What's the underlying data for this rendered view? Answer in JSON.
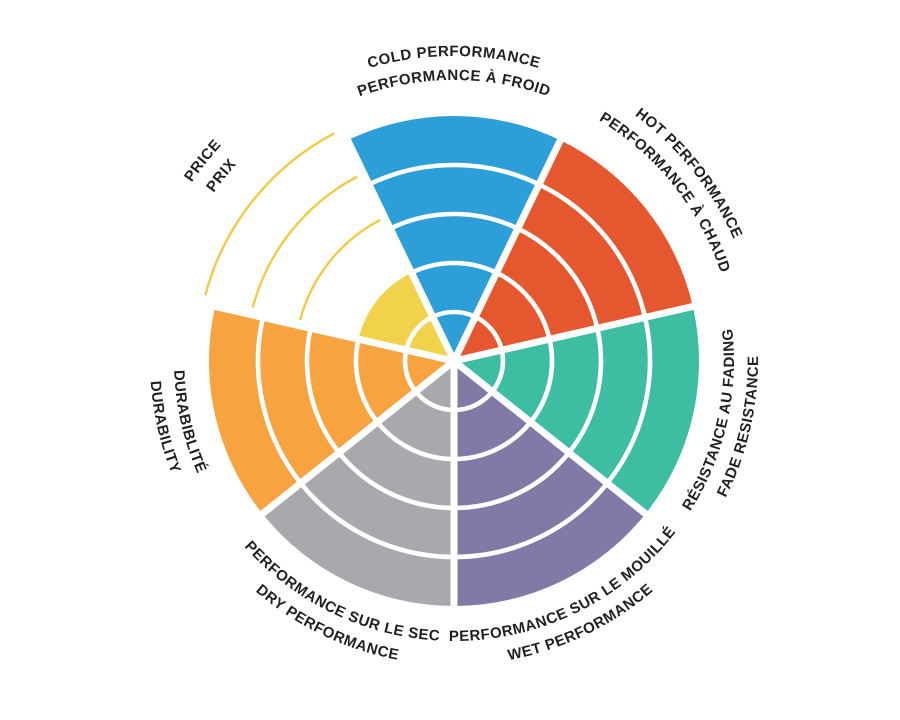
{
  "canvas": {
    "background": "#ffffff"
  },
  "chart_data": {
    "type": "pie",
    "subtype": "polar-rating-wheel",
    "title": "",
    "scale_max": 5,
    "rings": 5,
    "scale": [
      0,
      5
    ],
    "grid": "concentric-ring-dividers",
    "legend": "none",
    "empty_ring_style": "thin-outline-arc",
    "ring_line_color": "#ffffff",
    "text_color": "#231f20",
    "categories": [
      {
        "id": "cold",
        "label_en": "COLD PERFORMANCE",
        "label_fr": "PERFORMANCE À FROID",
        "value": 5,
        "color": "#2C9ED8",
        "label_orientation": "clockwise"
      },
      {
        "id": "hot",
        "label_en": "HOT PERFORMANCE",
        "label_fr": "PERFORMANCE À CHAUD",
        "value": 5,
        "color": "#E5582F",
        "label_orientation": "clockwise"
      },
      {
        "id": "fade",
        "label_en": "FADE RESISTANCE",
        "label_fr": "RÉSISTANCE AU FADING",
        "value": 5,
        "color": "#3DBEA3",
        "label_orientation": "counterclockwise"
      },
      {
        "id": "wet",
        "label_en": "WET PERFORMANCE",
        "label_fr": "PERFORMANCE SUR LE MOUILLÉ",
        "value": 5,
        "color": "#8279A7",
        "label_orientation": "counterclockwise"
      },
      {
        "id": "dry",
        "label_en": "DRY PERFORMANCE",
        "label_fr": "PERFORMANCE SUR LE SEC",
        "value": 5,
        "color": "#A8A9AC",
        "label_orientation": "counterclockwise"
      },
      {
        "id": "durability",
        "label_en": "DURABILITY",
        "label_fr": "DURABIBLITÉ",
        "value": 5,
        "color": "#F6A340",
        "label_orientation": "counterclockwise"
      },
      {
        "id": "price",
        "label_en": "PRICE",
        "label_fr": "PRIX",
        "value": 2,
        "color": "#F2D14B",
        "outline_color": "#F1CB44",
        "label_orientation": "clockwise"
      }
    ]
  }
}
